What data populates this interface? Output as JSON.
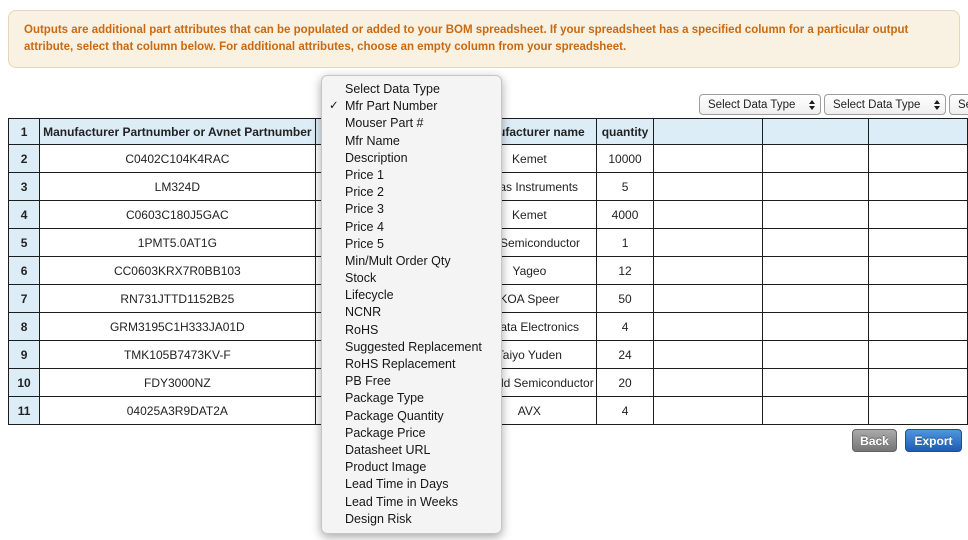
{
  "banner": {
    "text": "Outputs are additional part attributes that can be populated or added to your BOM spreadsheet. If your spreadsheet has a specified column for a particular output attribute, select that column below. For additional attributes, choose an empty column from your spreadsheet."
  },
  "output_selects": [
    {
      "value": "Select Data Type"
    },
    {
      "value": "Select Data Type"
    },
    {
      "value": "Select Data Type"
    }
  ],
  "dropdown": {
    "items": [
      {
        "label": "Select Data Type",
        "checked": false
      },
      {
        "label": "Mfr Part Number",
        "checked": true
      },
      {
        "label": "Mouser Part #",
        "checked": false
      },
      {
        "label": "Mfr Name",
        "checked": false
      },
      {
        "label": "Description",
        "checked": false
      },
      {
        "label": "Price 1",
        "checked": false
      },
      {
        "label": "Price 2",
        "checked": false
      },
      {
        "label": "Price 3",
        "checked": false
      },
      {
        "label": "Price 4",
        "checked": false
      },
      {
        "label": "Price 5",
        "checked": false
      },
      {
        "label": "Min/Mult Order Qty",
        "checked": false
      },
      {
        "label": "Stock",
        "checked": false
      },
      {
        "label": "Lifecycle",
        "checked": false
      },
      {
        "label": "NCNR",
        "checked": false
      },
      {
        "label": "RoHS",
        "checked": false
      },
      {
        "label": "Suggested Replacement",
        "checked": false
      },
      {
        "label": "RoHS Replacement",
        "checked": false
      },
      {
        "label": "PB Free",
        "checked": false
      },
      {
        "label": "Package Type",
        "checked": false
      },
      {
        "label": "Package Quantity",
        "checked": false
      },
      {
        "label": "Package Price",
        "checked": false
      },
      {
        "label": "Datasheet URL",
        "checked": false
      },
      {
        "label": "Product Image",
        "checked": false
      },
      {
        "label": "Lead Time in Days",
        "checked": false
      },
      {
        "label": "Lead Time in Weeks",
        "checked": false
      },
      {
        "label": "Design Risk",
        "checked": false
      }
    ]
  },
  "table": {
    "header": {
      "num": "1",
      "cells": [
        "Manufacturer Partnumber or Avnet Partnumber",
        "",
        "Manufacturer name",
        "quantity",
        "",
        "",
        ""
      ]
    },
    "rows": [
      {
        "num": "2",
        "cells": [
          "C0402C104K4RAC",
          "",
          "Kemet",
          "10000",
          "",
          "",
          ""
        ]
      },
      {
        "num": "3",
        "cells": [
          "LM324D",
          "",
          "Texas Instruments",
          "5",
          "",
          "",
          ""
        ]
      },
      {
        "num": "4",
        "cells": [
          "C0603C180J5GAC",
          "",
          "Kemet",
          "4000",
          "",
          "",
          ""
        ]
      },
      {
        "num": "5",
        "cells": [
          "1PMT5.0AT1G",
          "",
          "ON Semiconductor",
          "1",
          "",
          "",
          ""
        ]
      },
      {
        "num": "6",
        "cells": [
          "CC0603KRX7R0BB103",
          "",
          "Yageo",
          "12",
          "",
          "",
          ""
        ]
      },
      {
        "num": "7",
        "cells": [
          "RN731JTTD1152B25",
          "",
          "KOA Speer",
          "50",
          "",
          "",
          ""
        ]
      },
      {
        "num": "8",
        "cells": [
          "GRM3195C1H333JA01D",
          "",
          "Murata Electronics",
          "4",
          "",
          "",
          ""
        ]
      },
      {
        "num": "9",
        "cells": [
          "TMK105B7473KV-F",
          "",
          "Taiyo Yuden",
          "24",
          "",
          "",
          ""
        ]
      },
      {
        "num": "10",
        "cells": [
          "FDY3000NZ",
          "",
          "Fairchild Semiconductor",
          "20",
          "",
          "",
          ""
        ]
      },
      {
        "num": "11",
        "cells": [
          "04025A3R9DAT2A",
          "",
          "AVX",
          "4",
          "",
          "",
          ""
        ]
      }
    ]
  },
  "buttons": {
    "back": "Back",
    "export": "Export"
  },
  "icons": {
    "checkmark": "✓"
  },
  "colors": {
    "banner_text": "#c96a12",
    "banner_bg": "#f9f1e2",
    "header_blue": "#ddedf7",
    "export_blue": "#1e5cb3",
    "back_gray": "#757575"
  }
}
